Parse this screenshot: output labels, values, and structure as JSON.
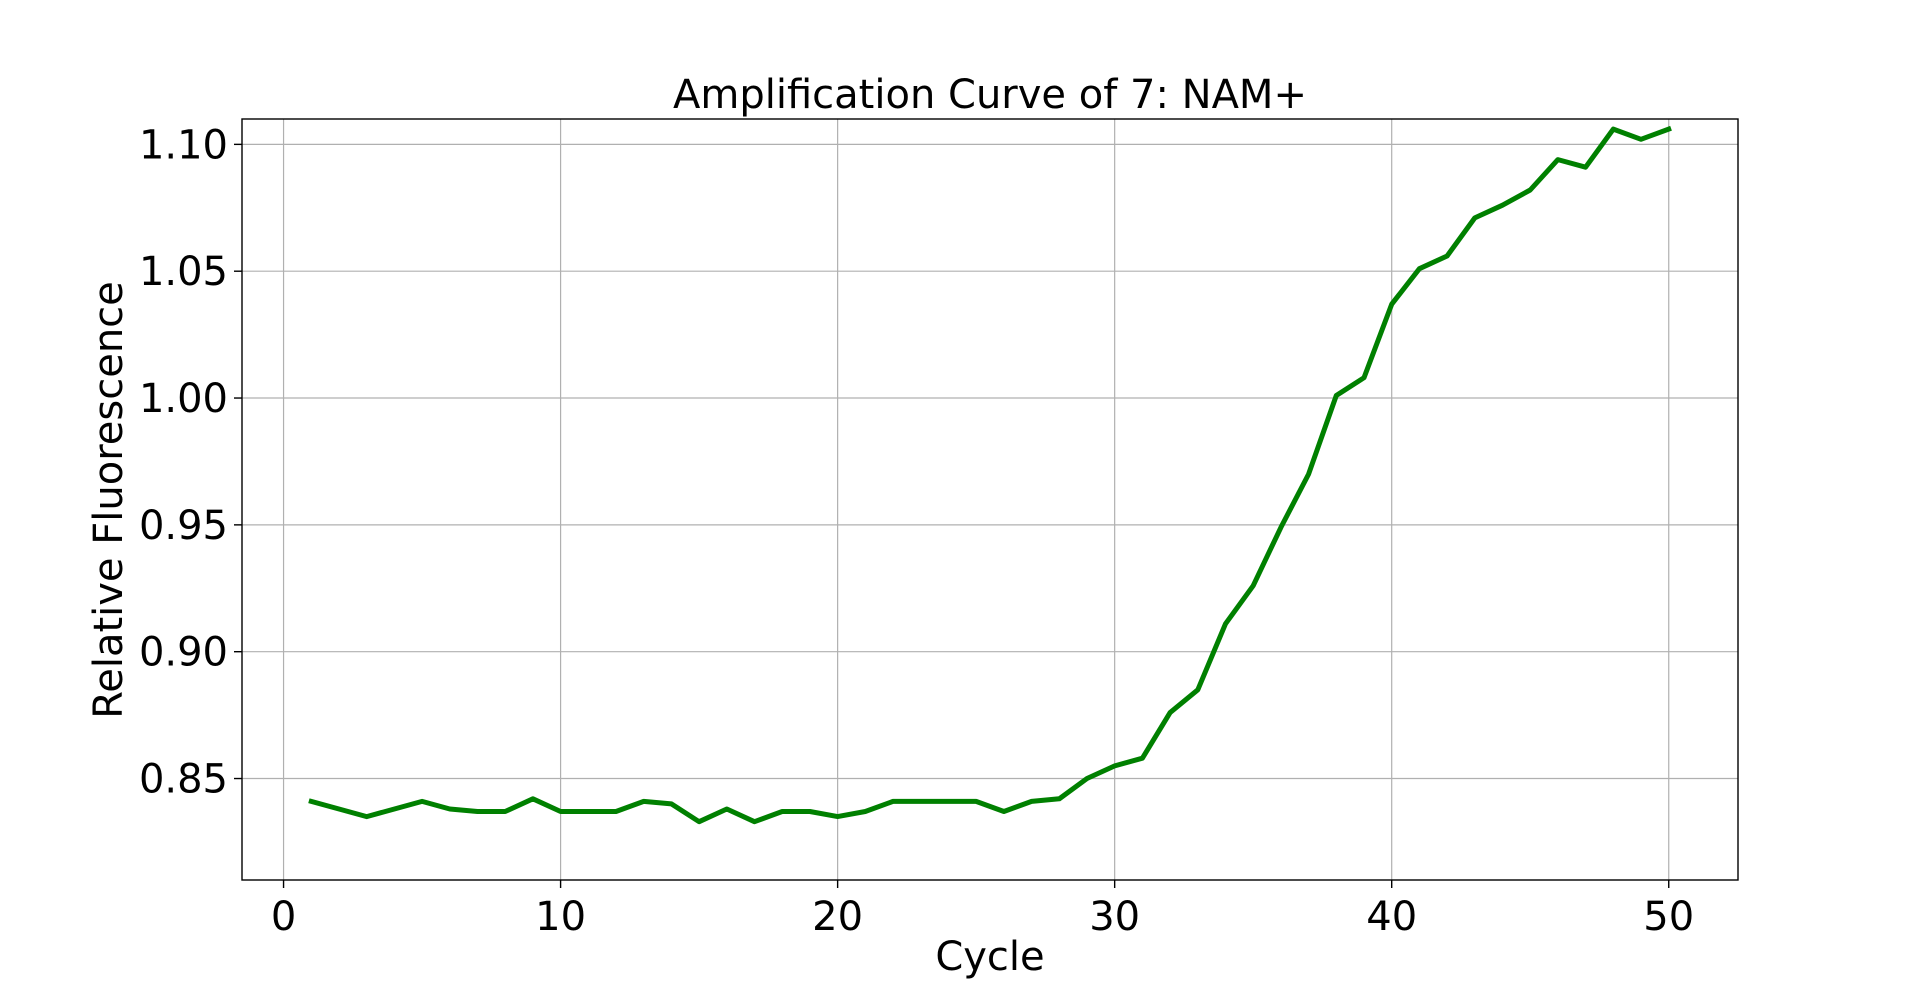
{
  "chart_data": {
    "type": "line",
    "title": "Amplification Curve of 7: NAM+",
    "xlabel": "Cycle",
    "ylabel": "Relative Fluorescence",
    "xlim": [
      -1.5,
      52.5
    ],
    "ylim": [
      0.81,
      1.11
    ],
    "grid": true,
    "x_ticks": [
      0,
      10,
      20,
      30,
      40,
      50
    ],
    "x_tick_labels": [
      "0",
      "10",
      "20",
      "30",
      "40",
      "50"
    ],
    "y_ticks": [
      0.85,
      0.9,
      0.95,
      1.0,
      1.05,
      1.1
    ],
    "y_tick_labels": [
      "0.85",
      "0.90",
      "0.95",
      "1.00",
      "1.05",
      "1.10"
    ],
    "series": [
      {
        "color": "#008000",
        "x": [
          1,
          2,
          3,
          4,
          5,
          6,
          7,
          8,
          9,
          10,
          11,
          12,
          13,
          14,
          15,
          16,
          17,
          18,
          19,
          20,
          21,
          22,
          23,
          24,
          25,
          26,
          27,
          28,
          29,
          30,
          31,
          32,
          33,
          34,
          35,
          36,
          37,
          38,
          39,
          40,
          41,
          42,
          43,
          44,
          45,
          46,
          47,
          48,
          49,
          50
        ],
        "y": [
          0.841,
          0.838,
          0.835,
          0.838,
          0.841,
          0.838,
          0.837,
          0.837,
          0.842,
          0.837,
          0.837,
          0.837,
          0.841,
          0.84,
          0.833,
          0.838,
          0.833,
          0.837,
          0.837,
          0.835,
          0.837,
          0.841,
          0.841,
          0.841,
          0.841,
          0.837,
          0.841,
          0.842,
          0.85,
          0.855,
          0.858,
          0.876,
          0.885,
          0.911,
          0.926,
          0.949,
          0.97,
          1.001,
          1.008,
          1.037,
          1.051,
          1.056,
          1.071,
          1.076,
          1.082,
          1.094,
          1.091,
          1.106,
          1.102,
          1.106
        ]
      }
    ]
  }
}
